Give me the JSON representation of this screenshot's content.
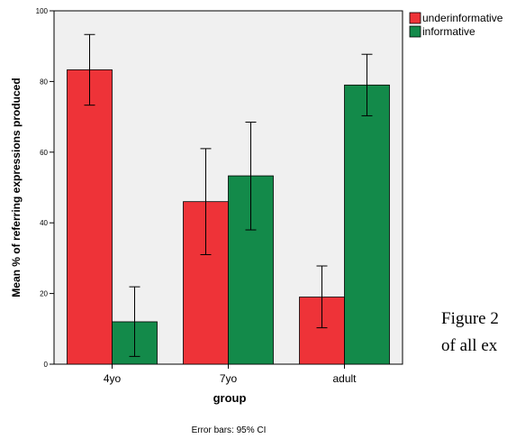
{
  "chart_data": {
    "type": "bar",
    "categories": [
      "4yo",
      "7yo",
      "adult"
    ],
    "series": [
      {
        "name": "underinformative",
        "color": "#ee3338",
        "values": [
          83.3,
          46.0,
          19.0
        ],
        "ci_low": [
          73.3,
          31.0,
          10.3
        ],
        "ci_high": [
          93.3,
          61.0,
          27.8
        ]
      },
      {
        "name": "informative",
        "color": "#138a4a",
        "values": [
          12.0,
          53.3,
          79.0
        ],
        "ci_low": [
          2.2,
          38.0,
          70.3
        ],
        "ci_high": [
          21.9,
          68.5,
          87.7
        ]
      }
    ],
    "xlabel": "group",
    "ylabel": "Mean % of referring expressions produced",
    "ylim": [
      0,
      100
    ],
    "yticks": [
      0,
      20,
      40,
      60,
      80,
      100
    ],
    "grid": false,
    "legend": "top-right",
    "note": "Error bars: 95% CI",
    "plot_background": "#f0f0f0"
  },
  "caption": {
    "line1": "Figure 2",
    "line2": "of all ex"
  }
}
